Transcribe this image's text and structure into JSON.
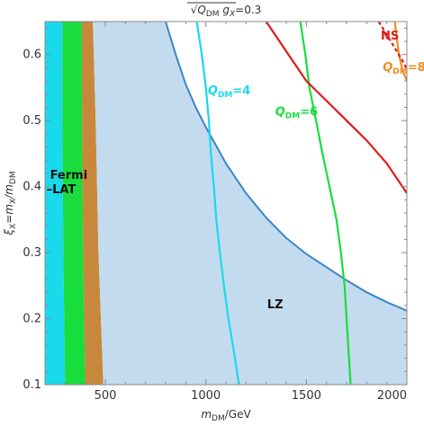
{
  "chart_data": {
    "type": "area",
    "title": {
      "base": "Q",
      "base_sub": "DM",
      "mid": " g",
      "mid_sub": "X",
      "tail": "=0.3"
    },
    "xlabel": {
      "a": "m",
      "a_sub": "DM",
      "b": "/GeV"
    },
    "ylabel": {
      "a": "ξ",
      "a_sub": "X",
      "b": "=m",
      "b_sub": "X",
      "c": "/m",
      "c_sub": "DM"
    },
    "xlim": [
      200,
      2000
    ],
    "ylim": [
      0.1,
      0.65
    ],
    "x_ticks": [
      500,
      1000,
      1500,
      2000
    ],
    "y_ticks": [
      0.1,
      0.2,
      0.3,
      0.4,
      0.5,
      0.6
    ],
    "y_tick_labels": [
      "0.1",
      "0.2",
      "0.3",
      "0.4",
      "0.5",
      "0.6"
    ],
    "grid": false,
    "legend": "none",
    "regions": [
      {
        "name": "cyan-band",
        "color": "#19d9ec",
        "x_left": [
          [
            200,
            0.1
          ],
          [
            200,
            0.65
          ]
        ],
        "x_right": [
          [
            300,
            0.1
          ],
          [
            291,
            0.3
          ],
          [
            287,
            0.5
          ],
          [
            287,
            0.65
          ]
        ]
      },
      {
        "name": "green-band",
        "color": "#19dd3c",
        "x_left": [
          [
            300,
            0.1
          ],
          [
            291,
            0.3
          ],
          [
            287,
            0.5
          ],
          [
            287,
            0.65
          ]
        ],
        "x_right": [
          [
            400,
            0.1
          ],
          [
            390,
            0.3
          ],
          [
            384,
            0.5
          ],
          [
            383,
            0.65
          ]
        ]
      },
      {
        "name": "brown-band",
        "color": "#c8883c",
        "x_left": [
          [
            400,
            0.1
          ],
          [
            390,
            0.3
          ],
          [
            384,
            0.5
          ],
          [
            383,
            0.65
          ]
        ],
        "x_right": [
          [
            490,
            0.1
          ],
          [
            466,
            0.3
          ],
          [
            452,
            0.5
          ],
          [
            438,
            0.65
          ]
        ]
      },
      {
        "name": "LZ",
        "color": "#c3dbee",
        "outline_color": "#3a85c8",
        "x_left": [
          [
            490,
            0.1
          ],
          [
            466,
            0.3
          ],
          [
            452,
            0.5
          ],
          [
            438,
            0.65
          ]
        ],
        "boundary": [
          [
            800,
            0.65
          ],
          [
            850,
            0.6
          ],
          [
            900,
            0.555
          ],
          [
            950,
            0.52
          ],
          [
            1000,
            0.49
          ],
          [
            1100,
            0.435
          ],
          [
            1200,
            0.39
          ],
          [
            1300,
            0.353
          ],
          [
            1400,
            0.322
          ],
          [
            1500,
            0.298
          ],
          [
            1600,
            0.278
          ],
          [
            1700,
            0.258
          ],
          [
            1800,
            0.24
          ],
          [
            1900,
            0.225
          ],
          [
            2000,
            0.212
          ]
        ]
      }
    ],
    "series": [
      {
        "name": "Q_DM=4",
        "color": "#19d9ec",
        "points": [
          [
            1165,
            0.1
          ],
          [
            1140,
            0.15
          ],
          [
            1112,
            0.2
          ],
          [
            1090,
            0.25
          ],
          [
            1070,
            0.3
          ],
          [
            1052,
            0.35
          ],
          [
            1040,
            0.4
          ],
          [
            1025,
            0.45
          ],
          [
            1015,
            0.5
          ],
          [
            1000,
            0.55
          ],
          [
            980,
            0.6
          ],
          [
            955,
            0.65
          ]
        ]
      },
      {
        "name": "Q_DM=6",
        "color": "#19dd3c",
        "points": [
          [
            1720,
            0.1
          ],
          [
            1700,
            0.2
          ],
          [
            1690,
            0.25
          ],
          [
            1672,
            0.3
          ],
          [
            1650,
            0.35
          ],
          [
            1615,
            0.4
          ],
          [
            1580,
            0.45
          ],
          [
            1548,
            0.5
          ],
          [
            1515,
            0.55
          ],
          [
            1495,
            0.6
          ],
          [
            1470,
            0.65
          ]
        ]
      },
      {
        "name": "Q_DM=8",
        "color": "#f08c20",
        "points": [
          [
            1940,
            0.65
          ],
          [
            1960,
            0.6
          ],
          [
            1980,
            0.575
          ],
          [
            2000,
            0.56
          ]
        ]
      },
      {
        "name": "NS",
        "color": "#e01a1a",
        "points": [
          [
            1300,
            0.65
          ],
          [
            1400,
            0.605
          ],
          [
            1500,
            0.56
          ],
          [
            1600,
            0.53
          ],
          [
            1700,
            0.5
          ],
          [
            1800,
            0.47
          ],
          [
            1900,
            0.435
          ],
          [
            2000,
            0.39
          ]
        ]
      },
      {
        "name": "NS-dashed",
        "color": "#e01a1a",
        "dashed": true,
        "points": [
          [
            1860,
            0.65
          ],
          [
            1920,
            0.62
          ],
          [
            1980,
            0.59
          ],
          [
            2000,
            0.578
          ]
        ]
      }
    ],
    "annotations": [
      {
        "text_key": "NS",
        "x": 1870,
        "y": 0.623,
        "color": "#e01a1a"
      },
      {
        "text_key": "Q8",
        "x": 1880,
        "y": 0.575,
        "color": "#f08c20"
      },
      {
        "text_key": "Q4",
        "x": 1010,
        "y": 0.54,
        "color": "#19d9ec"
      },
      {
        "text_key": "Q6",
        "x": 1345,
        "y": 0.508,
        "color": "#19dd3c"
      },
      {
        "text_key": "Fermi",
        "x": 225,
        "y": 0.412,
        "color": "#111111"
      },
      {
        "text_key": "LZ",
        "x": 1305,
        "y": 0.216,
        "color": "#111111"
      }
    ],
    "labels": {
      "NS": "NS",
      "Q8": "Q_DM=8",
      "Q4": "Q_DM=4",
      "Q6": "Q_DM=6",
      "Fermi": "Fermi\n–LAT",
      "LZ": "LZ"
    },
    "styled_labels": {
      "Q8": {
        "a": "Q",
        "a_sub": "DM",
        "b": "=8"
      },
      "Q4": {
        "a": "Q",
        "a_sub": "DM",
        "b": "=4"
      },
      "Q6": {
        "a": "Q",
        "a_sub": "DM",
        "b": "=6"
      },
      "Fermi_l1": "Fermi",
      "Fermi_l2": "–LAT"
    }
  }
}
